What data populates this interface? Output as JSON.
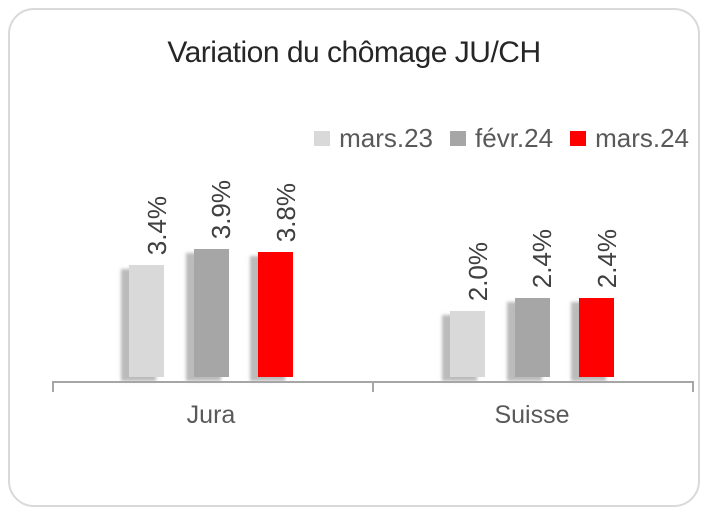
{
  "chart_data": {
    "type": "bar",
    "title": "Variation du chômage JU/CH",
    "categories": [
      "Jura",
      "Suisse"
    ],
    "series": [
      {
        "name": "mars.23",
        "color": "#d9d9d9",
        "values": [
          3.4,
          2.0
        ],
        "labels": [
          "3.4%",
          "2.0%"
        ]
      },
      {
        "name": "févr.24",
        "color": "#a6a6a6",
        "values": [
          3.9,
          2.4
        ],
        "labels": [
          "3.9%",
          "2.4%"
        ]
      },
      {
        "name": "mars.24",
        "color": "#ff0000",
        "values": [
          3.8,
          2.4
        ],
        "labels": [
          "3.8%",
          "2.4%"
        ]
      }
    ],
    "ylim": [
      0,
      4
    ],
    "y_axis_visible": false,
    "grid": false,
    "legend_position": "top-right",
    "data_label_rotation": "vertical",
    "colors": {
      "title_text": "#262626",
      "legend_text": "#595959",
      "category_text": "#595959",
      "data_label_text": "#404040",
      "axis_line": "#a6a6a6",
      "card_border": "#d9d9d9",
      "background": "#ffffff"
    }
  }
}
